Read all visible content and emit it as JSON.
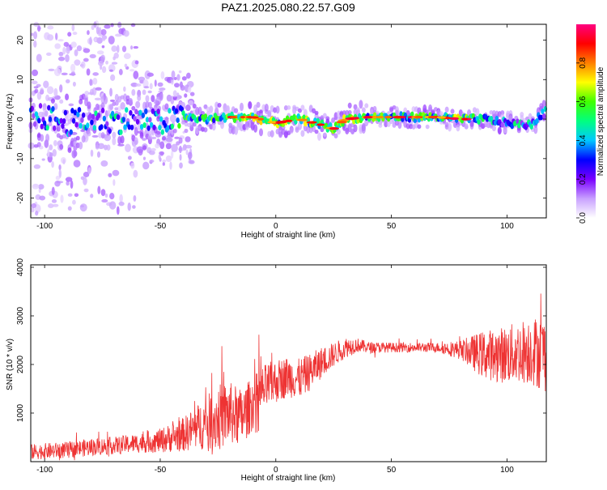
{
  "title": "PAZ1.2025.080.22.57.G09",
  "chart_data": [
    {
      "type": "heatmap",
      "xlabel": "Height of straight line (km)",
      "ylabel": "Frequency (Hz)",
      "xlim": [
        -106,
        117
      ],
      "ylim": [
        -25,
        24
      ],
      "xticks": [
        "-100",
        "-50",
        "0",
        "50",
        "100"
      ],
      "yticks": [
        "-20",
        "-10",
        "0",
        "10",
        "20"
      ],
      "colorbar": {
        "label": "Normalized spectral amplitude",
        "range": [
          0,
          1
        ],
        "ticks": [
          "0.0",
          "0.2",
          "0.4",
          "0.6",
          "0.8"
        ],
        "colors": [
          "#ffffff",
          "#c8a0ff",
          "#7a00ff",
          "#0000ff",
          "#00c8ff",
          "#00ff80",
          "#40ff00",
          "#ffff00",
          "#ff8000",
          "#ff0000",
          "#ff0080"
        ]
      },
      "ridge": [
        {
          "x": -100,
          "f": 0.5,
          "a": 0.3
        },
        {
          "x": -90,
          "f": -1.0,
          "a": 0.35
        },
        {
          "x": -80,
          "f": 0.0,
          "a": 0.3
        },
        {
          "x": -70,
          "f": -0.5,
          "a": 0.35
        },
        {
          "x": -60,
          "f": 0.0,
          "a": 0.3
        },
        {
          "x": -50,
          "f": -1.0,
          "a": 0.3
        },
        {
          "x": -40,
          "f": 0.5,
          "a": 0.45
        },
        {
          "x": -30,
          "f": 0.0,
          "a": 0.45
        },
        {
          "x": -20,
          "f": 0.5,
          "a": 0.5
        },
        {
          "x": -10,
          "f": 0.5,
          "a": 0.6
        },
        {
          "x": 0,
          "f": -1.0,
          "a": 0.5
        },
        {
          "x": 10,
          "f": 0.0,
          "a": 0.55
        },
        {
          "x": 20,
          "f": -1.5,
          "a": 0.5
        },
        {
          "x": 25,
          "f": -2.5,
          "a": 0.55
        },
        {
          "x": 30,
          "f": 0.0,
          "a": 0.6
        },
        {
          "x": 40,
          "f": 0.5,
          "a": 0.45
        },
        {
          "x": 50,
          "f": 0.5,
          "a": 0.45
        },
        {
          "x": 60,
          "f": 0.5,
          "a": 0.45
        },
        {
          "x": 70,
          "f": 0.5,
          "a": 0.45
        },
        {
          "x": 80,
          "f": 0.0,
          "a": 0.55
        },
        {
          "x": 90,
          "f": 0.0,
          "a": 0.4
        },
        {
          "x": 100,
          "f": -1.0,
          "a": 0.3
        },
        {
          "x": 110,
          "f": -1.5,
          "a": 0.4
        },
        {
          "x": 117,
          "f": 2.0,
          "a": 0.35
        }
      ]
    },
    {
      "type": "line",
      "xlabel": "Height of straight line (km)",
      "ylabel": "SNR (10 * v/v)",
      "xlim": [
        -106,
        117
      ],
      "ylim": [
        0,
        4050
      ],
      "xticks": [
        "-100",
        "-50",
        "0",
        "50",
        "100"
      ],
      "yticks": [
        "1000",
        "2000",
        "3000",
        "4000"
      ],
      "color": "#ee3333",
      "envelope": {
        "x": [
          -106,
          -90,
          -80,
          -70,
          -60,
          -50,
          -40,
          -30,
          -25,
          -20,
          -15,
          -10,
          -5,
          0,
          5,
          10,
          15,
          20,
          25,
          30,
          35,
          40,
          50,
          60,
          70,
          80,
          85,
          90,
          100,
          110,
          117
        ],
        "mean": [
          200,
          240,
          300,
          330,
          380,
          430,
          560,
          800,
          900,
          1000,
          900,
          1200,
          1500,
          1650,
          1750,
          1700,
          1850,
          2050,
          2200,
          2350,
          2400,
          2350,
          2350,
          2350,
          2350,
          2300,
          2250,
          2200,
          2200,
          2300,
          2200
        ],
        "spread": [
          160,
          170,
          180,
          180,
          200,
          250,
          350,
          550,
          700,
          650,
          600,
          550,
          500,
          450,
          420,
          420,
          380,
          320,
          250,
          220,
          150,
          120,
          100,
          100,
          100,
          200,
          350,
          500,
          600,
          700,
          800
        ]
      }
    }
  ]
}
